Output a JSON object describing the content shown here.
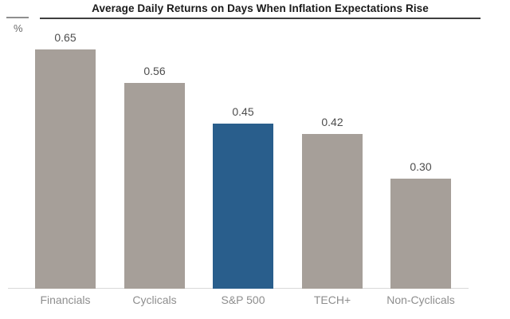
{
  "header": {
    "title": "Average Daily Returns on Days When Inflation Expectations Rise",
    "unit_label": "%"
  },
  "palette": {
    "bar_default": "#a69f99",
    "bar_highlight": "#295e8c",
    "baseline": "#d9d9d9"
  },
  "chart_data": {
    "type": "bar",
    "title": "Average Daily Returns on Days When Inflation Expectations Rise",
    "ylabel": "%",
    "xlabel": "",
    "categories": [
      "Financials",
      "Cyclicals",
      "S&P 500",
      "TECH+",
      "Non-Cyclicals"
    ],
    "values": [
      0.65,
      0.56,
      0.45,
      0.42,
      0.3
    ],
    "value_labels": [
      "0.65",
      "0.56",
      "0.45",
      "0.42",
      "0.30"
    ],
    "colors": [
      "#a69f99",
      "#a69f99",
      "#295e8c",
      "#a69f99",
      "#a69f99"
    ],
    "highlighted_category": "S&P 500",
    "ylim": [
      0,
      0.72
    ],
    "grid": false,
    "legend": false,
    "data_labels_position": "above-bars"
  }
}
